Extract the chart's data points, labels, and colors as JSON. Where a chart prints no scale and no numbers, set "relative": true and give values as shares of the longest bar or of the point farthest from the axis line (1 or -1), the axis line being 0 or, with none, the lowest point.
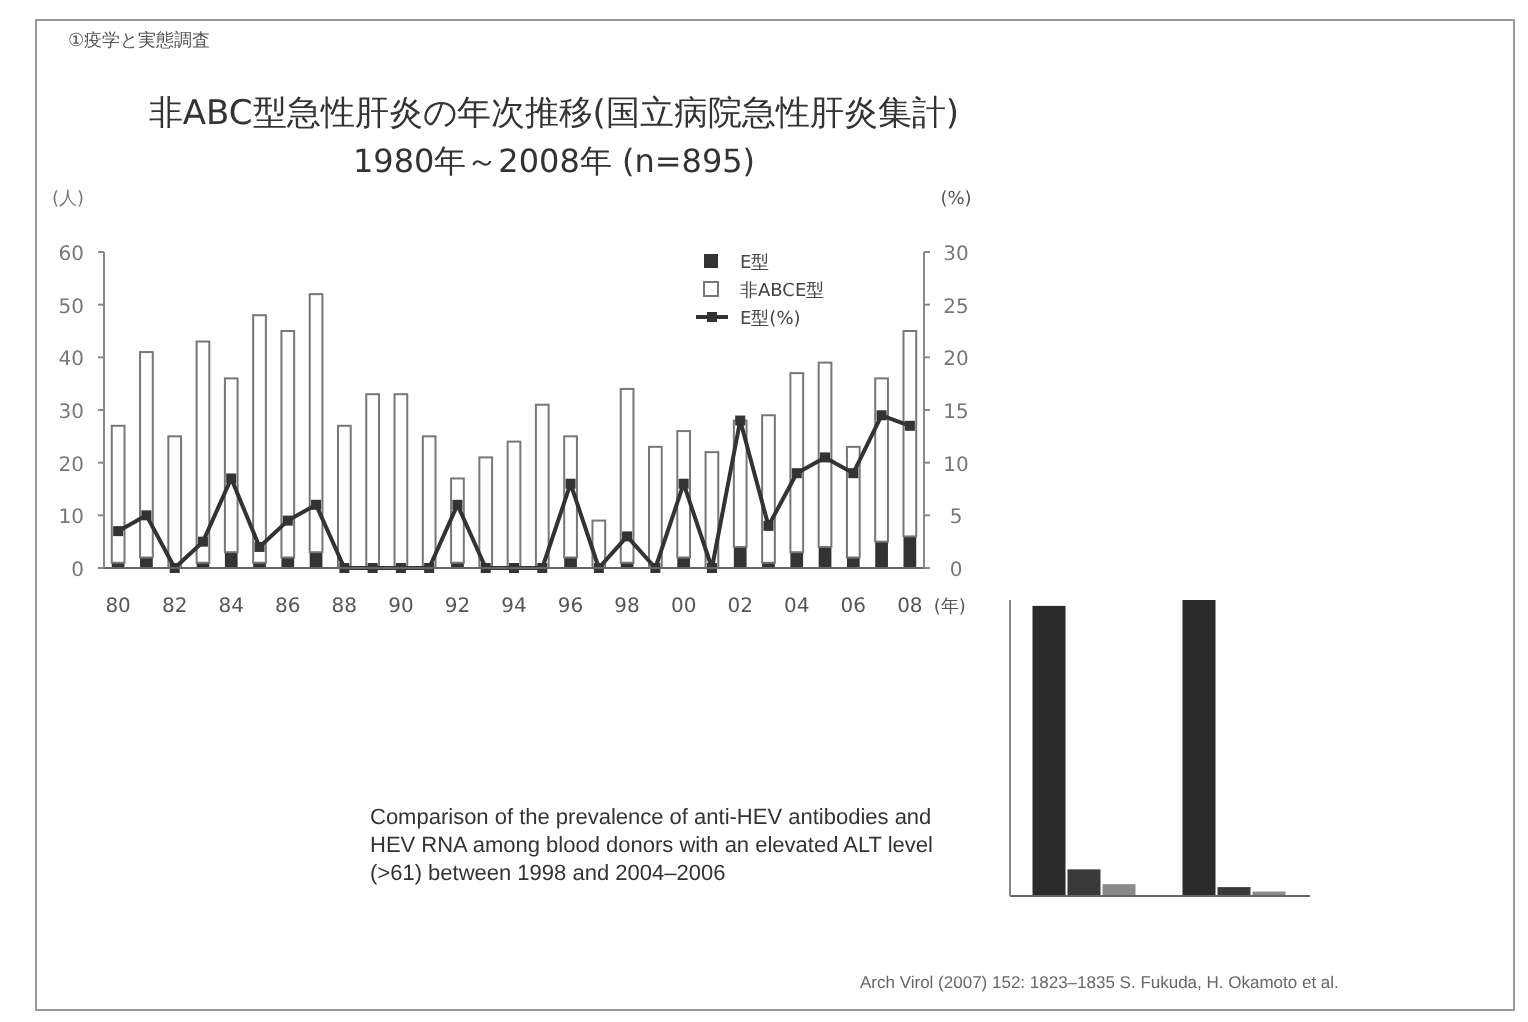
{
  "chart_data": [
    {
      "type": "bar",
      "title": "非ABC型急性肝炎の年次推移(国立病院急性肝炎集計)",
      "subtitle": "1980年～2008年 (n=895)",
      "annotations": [
        "①疫学と実態調査"
      ],
      "categories": [
        "80",
        null,
        "82",
        null,
        "84",
        null,
        "86",
        null,
        "88",
        null,
        "90",
        null,
        "92",
        null,
        "94",
        null,
        "96",
        null,
        "98",
        null,
        "00",
        null,
        "02",
        null,
        "04",
        null,
        "06",
        null,
        "08"
      ],
      "stacked": true,
      "xlabel": "(年)",
      "ylabel": "(人)",
      "y2label": "(%)",
      "ylim": [
        0,
        60
      ],
      "yticks": [
        0,
        10,
        20,
        30,
        40,
        50,
        60
      ],
      "y2lim": [
        0,
        30
      ],
      "y2ticks": [
        0,
        5,
        10,
        15,
        20,
        25,
        30
      ],
      "legend": "top right",
      "marker": "square",
      "series": [
        {
          "name": "E型",
          "type": "bar",
          "color": "#333333",
          "values": [
            1,
            2,
            0,
            1,
            3,
            1,
            2,
            3,
            0,
            0,
            0,
            0,
            1,
            0,
            0,
            0,
            2,
            0,
            1,
            0,
            2,
            0,
            4,
            1,
            3,
            4,
            2,
            5,
            6
          ]
        },
        {
          "name": "非ABCE型",
          "type": "bar",
          "color": "#ffffff",
          "values": [
            26,
            39,
            25,
            42,
            33,
            47,
            43,
            49,
            27,
            33,
            33,
            25,
            16,
            21,
            24,
            31,
            23,
            9,
            33,
            23,
            24,
            22,
            24,
            28,
            34,
            35,
            21,
            31,
            39
          ]
        },
        {
          "name": "E型(%)",
          "type": "line",
          "axis": "y2",
          "color": "#333333",
          "values": [
            3.5,
            5,
            0,
            2.5,
            8.5,
            2,
            4.5,
            6,
            0,
            0,
            0,
            0,
            6,
            0,
            0,
            0,
            8,
            0,
            3,
            0,
            8,
            0,
            14,
            4,
            9,
            10.5,
            9,
            14.5,
            13.5
          ]
        }
      ]
    },
    {
      "type": "bar",
      "relative": true,
      "categories": [
        null,
        null
      ],
      "annotations": [
        "Comparison of the prevalence of anti-HEV antibodies and HEV RNA among blood donors with an elevated ALT level (>61) between 1998 and 2004–2006",
        "Arch Virol (2007) 152: 1823–1835 S. Fukuda, H. Okamoto et al."
      ],
      "series": [
        {
          "color": "#2b2b2b",
          "values": [
            0.98,
            1
          ]
        },
        {
          "color": "#3a3a3a",
          "values": [
            0.09,
            0.03
          ]
        },
        {
          "color": "#8a8a8a",
          "values": [
            0.04,
            0.015
          ]
        }
      ]
    }
  ]
}
